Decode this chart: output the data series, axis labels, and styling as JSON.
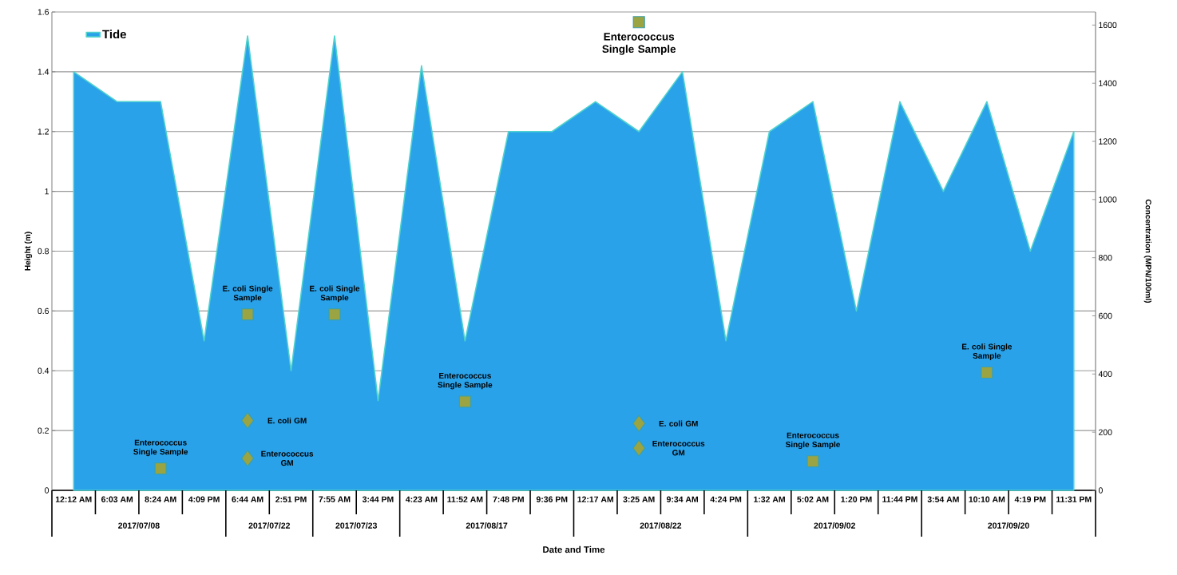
{
  "chart_data": {
    "type": "area",
    "xlabel": "Date and Time",
    "ylabel": "Height (m)",
    "y2label": "Concentration (MPN/100ml)",
    "categories": [
      "12:12 AM",
      "6:03 AM",
      "8:24 AM",
      "4:09 PM",
      "6:44 AM",
      "2:51 PM",
      "7:55 AM",
      "3:44 PM",
      "4:23 AM",
      "11:52 AM",
      "7:48 PM",
      "9:36 PM",
      "12:17 AM",
      "3:25 AM",
      "9:34 AM",
      "4:24 PM",
      "1:32 AM",
      "5:02 AM",
      "1:20 PM",
      "11:44 PM",
      "3:54 AM",
      "10:10 AM",
      "4:19 PM",
      "11:31 PM"
    ],
    "series": [
      {
        "name": "Tide",
        "color": "#2aa2ea",
        "values": [
          1.4,
          1.3,
          1.3,
          0.5,
          1.52,
          0.4,
          1.52,
          0.3,
          1.42,
          0.5,
          1.2,
          1.2,
          1.3,
          1.2,
          1.4,
          0.5,
          1.2,
          1.3,
          0.6,
          1.3,
          1.0,
          1.3,
          0.8,
          1.2
        ]
      },
      {
        "type": "scatter",
        "axis": "y2",
        "marker": "square",
        "color": "#9aa443",
        "x": [
          "8:24 AM",
          "6:44 AM",
          "7:55 AM",
          "11:52 AM",
          "3:25 AM",
          "5:02 AM",
          "10:10 AM"
        ],
        "values": [
          75,
          605,
          605,
          305,
          1610,
          100,
          405
        ]
      },
      {
        "type": "scatter",
        "axis": "y2",
        "marker": "diamond",
        "color": "#9aa443",
        "x": [
          "6:44 AM",
          "6:44 AM",
          "3:25 AM",
          "3:25 AM"
        ],
        "values": [
          240,
          110,
          230,
          145
        ]
      }
    ],
    "ylim": [
      0,
      1.6
    ],
    "yticks": [
      0,
      0.2,
      0.4,
      0.6,
      0.8,
      1,
      1.2,
      1.4,
      1.6
    ],
    "y2lim": [
      0,
      1645
    ],
    "y2ticks": [
      0,
      200,
      400,
      600,
      800,
      1000,
      1200,
      1400,
      1600
    ],
    "grid": "y",
    "legend": "top left",
    "annotations": [
      "Enterococcus Single Sample",
      "E. coli Single Sample",
      "E. coli Single Sample",
      "Enterococcus Single Sample",
      "Enterococcus Single Sample",
      "Enterococcus Single Sample",
      "E. coli Single Sample",
      "E. coli GM",
      "Enterococcus GM",
      "E. coli GM",
      "Enterococcus GM",
      "2017/07/08",
      "2017/07/22",
      "2017/07/23",
      "2017/08/17",
      "2017/08/22",
      "2017/09/02",
      "2017/09/20"
    ]
  }
}
